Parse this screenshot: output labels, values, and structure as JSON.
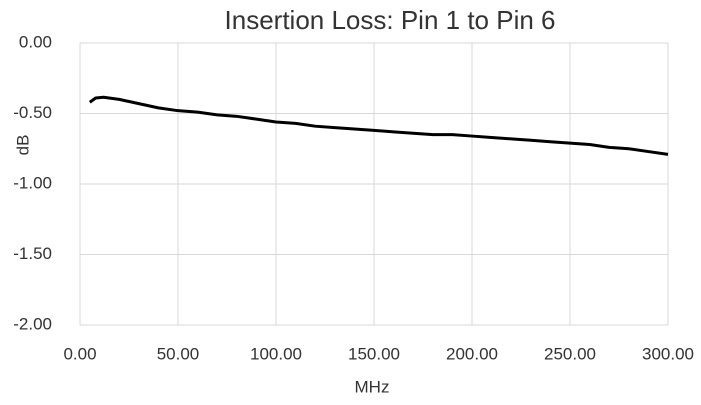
{
  "chart_data": {
    "type": "line",
    "title": "Insertion Loss: Pin 1 to Pin 6",
    "x_label": "MHz",
    "y_label": "dB",
    "x": [
      5,
      8,
      12,
      20,
      30,
      40,
      50,
      60,
      70,
      80,
      90,
      100,
      110,
      120,
      130,
      140,
      150,
      160,
      170,
      180,
      190,
      200,
      210,
      220,
      230,
      240,
      250,
      260,
      270,
      280,
      290,
      300
    ],
    "series": [
      {
        "name": "Insertion Loss",
        "color": "#000000",
        "values": [
          -0.42,
          -0.39,
          -0.385,
          -0.4,
          -0.43,
          -0.46,
          -0.48,
          -0.49,
          -0.51,
          -0.52,
          -0.54,
          -0.56,
          -0.57,
          -0.59,
          -0.6,
          -0.61,
          -0.62,
          -0.63,
          -0.64,
          -0.65,
          -0.65,
          -0.66,
          -0.67,
          -0.68,
          -0.69,
          -0.7,
          -0.71,
          -0.72,
          -0.74,
          -0.75,
          -0.77,
          -0.79
        ]
      }
    ],
    "xlim": [
      0,
      300
    ],
    "xticks": [
      {
        "value": 0,
        "label": "0.00"
      },
      {
        "value": 50,
        "label": "50.00"
      },
      {
        "value": 100,
        "label": "100.00"
      },
      {
        "value": 150,
        "label": "150.00"
      },
      {
        "value": 200,
        "label": "200.00"
      },
      {
        "value": 250,
        "label": "250.00"
      },
      {
        "value": 300,
        "label": "300.00"
      }
    ],
    "ylim": [
      -2,
      0
    ],
    "yticks": [
      {
        "value": 0,
        "label": "0.00"
      },
      {
        "value": -0.5,
        "label": "-0.50"
      },
      {
        "value": -1,
        "label": "-1.00"
      },
      {
        "value": -1.5,
        "label": "-1.50"
      },
      {
        "value": -2,
        "label": "-2.00"
      }
    ],
    "grid": true
  }
}
